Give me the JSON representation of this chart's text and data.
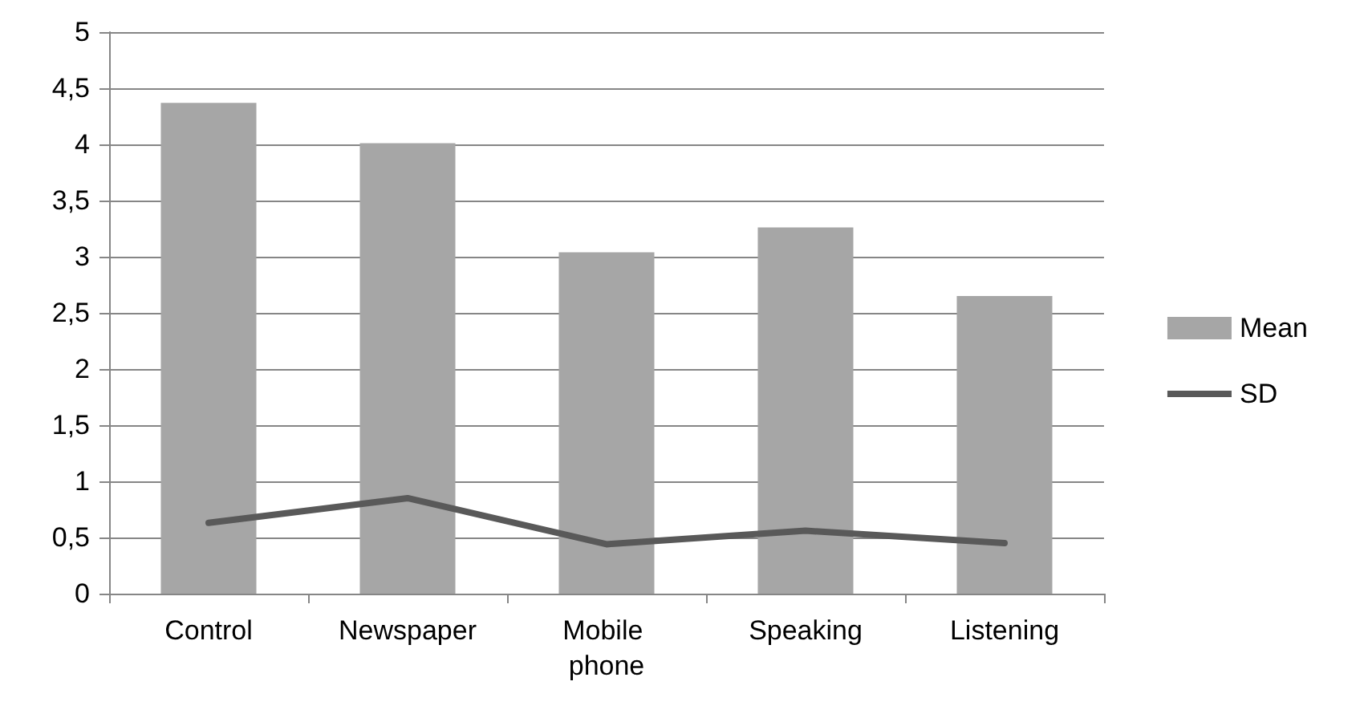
{
  "chart_data": {
    "type": "bar",
    "categories": [
      "Control",
      "Newspaper",
      "Mobile phone",
      "Speaking",
      "Listening"
    ],
    "series": [
      {
        "name": "Mean",
        "color": "#a6a6a6",
        "values": [
          4.37,
          4.01,
          3.04,
          3.26,
          2.65
        ]
      },
      {
        "name": "SD",
        "type": "line",
        "color": "#595959",
        "values": [
          0.63,
          0.85,
          0.44,
          0.56,
          0.45
        ]
      }
    ],
    "ylim": [
      0,
      5
    ],
    "yticks": [
      0,
      {
        "value": 0.5,
        "label": "0,5"
      },
      1,
      {
        "value": 1.5,
        "label": "1,5"
      },
      2,
      {
        "value": 2.5,
        "label": "2,5"
      },
      3,
      {
        "value": 3.5,
        "label": "3,5"
      },
      4,
      {
        "value": 4.5,
        "label": "4,5"
      },
      5
    ],
    "grid": "y",
    "legend": "right",
    "marker": "none",
    "line_style": "solid"
  }
}
